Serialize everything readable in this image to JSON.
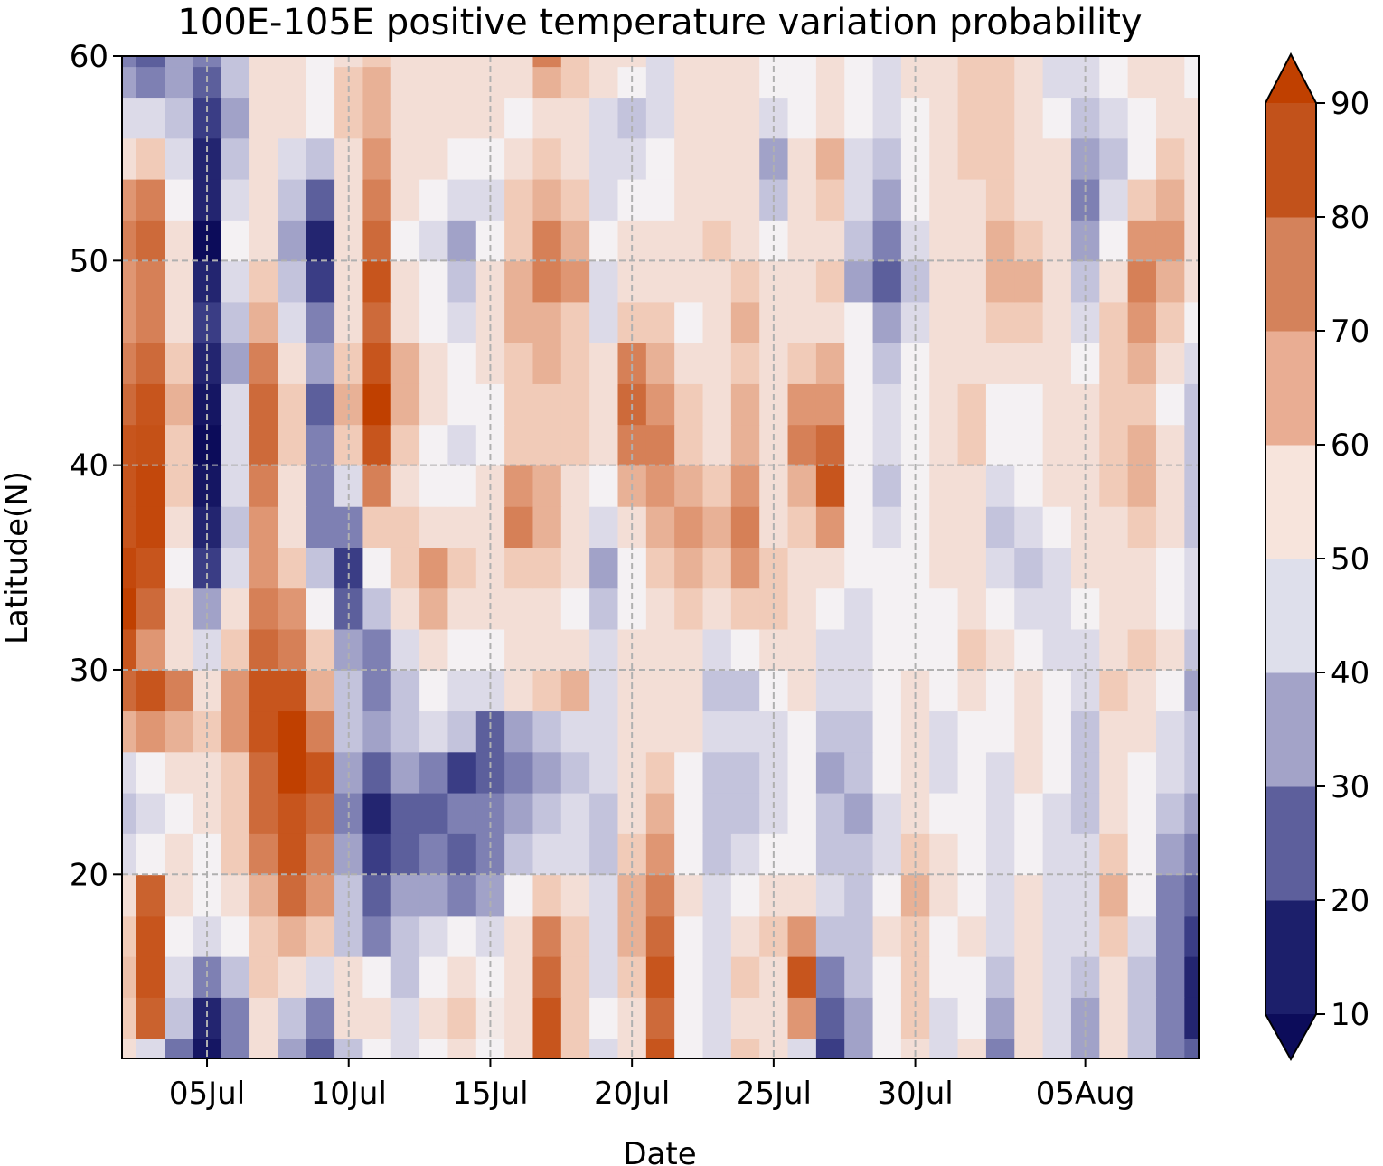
{
  "chart_data": {
    "type": "heatmap",
    "title": "100E-105E positive temperature variation probability",
    "xlabel": "Date",
    "ylabel": "Latitude(N)",
    "x_dates": [
      "02Jul",
      "03Jul",
      "04Jul",
      "05Jul",
      "06Jul",
      "07Jul",
      "08Jul",
      "09Jul",
      "10Jul",
      "11Jul",
      "12Jul",
      "13Jul",
      "14Jul",
      "15Jul",
      "16Jul",
      "17Jul",
      "18Jul",
      "19Jul",
      "20Jul",
      "21Jul",
      "22Jul",
      "23Jul",
      "24Jul",
      "25Jul",
      "26Jul",
      "27Jul",
      "28Jul",
      "29Jul",
      "30Jul",
      "31Jul",
      "01Aug",
      "02Aug",
      "03Aug",
      "04Aug",
      "05Aug",
      "06Aug",
      "07Aug",
      "08Aug",
      "09Aug"
    ],
    "x_ticks": [
      {
        "label": "05Jul",
        "index": 3
      },
      {
        "label": "10Jul",
        "index": 8
      },
      {
        "label": "15Jul",
        "index": 13
      },
      {
        "label": "20Jul",
        "index": 18
      },
      {
        "label": "25Jul",
        "index": 23
      },
      {
        "label": "30Jul",
        "index": 28
      },
      {
        "label": "05Aug",
        "index": 34
      }
    ],
    "y_lat": [
      11,
      13,
      15,
      17,
      19,
      21,
      23,
      25,
      27,
      29,
      31,
      33,
      35,
      37,
      39,
      41,
      43,
      45,
      47,
      49,
      51,
      53,
      55,
      57,
      59,
      60
    ],
    "y_ticks": [
      20,
      30,
      40,
      50,
      60
    ],
    "ylim": [
      11,
      60
    ],
    "grid": true,
    "colorbar": {
      "levels": [
        10,
        20,
        30,
        40,
        50,
        60,
        70,
        80,
        90
      ],
      "tick_labels": [
        "10",
        "20",
        "30",
        "40",
        "50",
        "60",
        "70",
        "80",
        "90"
      ],
      "colors": [
        "#1c1f6b",
        "#5d5f9c",
        "#a3a3c8",
        "#dedfeb",
        "#f7e4dc",
        "#e9ad93",
        "#d4825b",
        "#c2521b"
      ],
      "under_color": "#0c0c5a",
      "over_color": "#c04000",
      "extend": "both"
    },
    "colormap_stops": [
      [
        10,
        "#0c0c5a"
      ],
      [
        20,
        "#3a3d85"
      ],
      [
        30,
        "#7e80b3"
      ],
      [
        40,
        "#c3c3dc"
      ],
      [
        50,
        "#f4f1f3"
      ],
      [
        60,
        "#f1cbb8"
      ],
      [
        70,
        "#df9673"
      ],
      [
        80,
        "#cd6a3a"
      ],
      [
        90,
        "#c04000"
      ]
    ],
    "values": [
      [
        55,
        45,
        28,
        12,
        30,
        55,
        35,
        25,
        40,
        50,
        45,
        50,
        55,
        50,
        55,
        85,
        60,
        45,
        55,
        85,
        50,
        45,
        60,
        55,
        45,
        20,
        35,
        50,
        55,
        45,
        55,
        30,
        55,
        45,
        35,
        55,
        40,
        30,
        25
      ],
      [
        60,
        82,
        40,
        15,
        30,
        55,
        40,
        30,
        55,
        55,
        45,
        55,
        60,
        52,
        55,
        85,
        60,
        50,
        55,
        80,
        50,
        45,
        55,
        55,
        70,
        25,
        35,
        50,
        60,
        45,
        50,
        35,
        55,
        45,
        35,
        55,
        40,
        30,
        15
      ],
      [
        62,
        85,
        45,
        30,
        40,
        60,
        55,
        45,
        55,
        50,
        40,
        50,
        55,
        50,
        55,
        80,
        60,
        45,
        60,
        85,
        50,
        45,
        60,
        55,
        85,
        30,
        40,
        50,
        60,
        50,
        50,
        40,
        55,
        45,
        40,
        55,
        40,
        30,
        15
      ],
      [
        60,
        85,
        50,
        45,
        50,
        60,
        65,
        60,
        40,
        30,
        40,
        45,
        50,
        45,
        55,
        75,
        60,
        45,
        65,
        80,
        50,
        45,
        55,
        60,
        70,
        40,
        40,
        55,
        60,
        50,
        55,
        45,
        55,
        45,
        45,
        60,
        45,
        30,
        20
      ],
      [
        55,
        82,
        55,
        50,
        55,
        65,
        80,
        70,
        40,
        25,
        35,
        35,
        30,
        35,
        50,
        60,
        55,
        45,
        65,
        75,
        55,
        45,
        50,
        55,
        55,
        45,
        40,
        50,
        65,
        55,
        50,
        45,
        55,
        45,
        45,
        65,
        50,
        30,
        25
      ],
      [
        45,
        50,
        55,
        50,
        60,
        75,
        85,
        75,
        35,
        20,
        25,
        30,
        25,
        30,
        40,
        45,
        45,
        40,
        60,
        70,
        50,
        40,
        45,
        50,
        50,
        40,
        40,
        45,
        60,
        55,
        50,
        45,
        50,
        45,
        45,
        60,
        50,
        35,
        30
      ],
      [
        40,
        45,
        50,
        55,
        60,
        80,
        85,
        80,
        30,
        15,
        25,
        25,
        30,
        30,
        35,
        40,
        45,
        40,
        55,
        65,
        50,
        40,
        40,
        45,
        50,
        40,
        35,
        45,
        55,
        50,
        50,
        45,
        50,
        45,
        40,
        55,
        50,
        40,
        35
      ],
      [
        45,
        50,
        55,
        55,
        60,
        80,
        90,
        85,
        35,
        25,
        35,
        30,
        20,
        25,
        30,
        35,
        40,
        45,
        55,
        60,
        50,
        40,
        40,
        45,
        50,
        35,
        40,
        50,
        55,
        45,
        50,
        45,
        55,
        50,
        40,
        55,
        50,
        45,
        40
      ],
      [
        65,
        70,
        65,
        60,
        70,
        85,
        90,
        75,
        40,
        35,
        40,
        45,
        40,
        25,
        35,
        40,
        45,
        45,
        55,
        55,
        55,
        45,
        45,
        45,
        50,
        40,
        40,
        50,
        55,
        45,
        50,
        50,
        55,
        50,
        40,
        55,
        55,
        45,
        40
      ],
      [
        80,
        85,
        75,
        55,
        70,
        85,
        85,
        65,
        40,
        30,
        40,
        50,
        45,
        45,
        55,
        60,
        65,
        45,
        55,
        55,
        55,
        40,
        40,
        50,
        55,
        45,
        45,
        50,
        55,
        50,
        55,
        50,
        55,
        50,
        45,
        60,
        55,
        50,
        35
      ],
      [
        85,
        70,
        55,
        45,
        60,
        80,
        75,
        60,
        35,
        30,
        45,
        55,
        50,
        50,
        55,
        55,
        55,
        45,
        55,
        55,
        55,
        45,
        50,
        55,
        55,
        45,
        45,
        50,
        50,
        50,
        60,
        55,
        50,
        45,
        45,
        55,
        60,
        55,
        40
      ],
      [
        90,
        80,
        55,
        35,
        55,
        75,
        70,
        50,
        25,
        40,
        55,
        65,
        55,
        55,
        55,
        55,
        50,
        40,
        50,
        55,
        60,
        55,
        60,
        60,
        55,
        50,
        45,
        50,
        50,
        50,
        55,
        50,
        45,
        45,
        50,
        55,
        55,
        50,
        45
      ],
      [
        88,
        85,
        50,
        20,
        45,
        70,
        60,
        40,
        20,
        50,
        60,
        70,
        60,
        55,
        60,
        60,
        55,
        35,
        50,
        60,
        65,
        60,
        70,
        60,
        55,
        55,
        50,
        50,
        50,
        55,
        55,
        45,
        40,
        45,
        55,
        55,
        55,
        50,
        45
      ],
      [
        85,
        88,
        55,
        15,
        40,
        70,
        55,
        30,
        30,
        60,
        60,
        55,
        55,
        55,
        75,
        65,
        55,
        45,
        55,
        65,
        70,
        65,
        75,
        55,
        60,
        70,
        50,
        45,
        50,
        55,
        55,
        40,
        45,
        50,
        55,
        55,
        60,
        55,
        40
      ],
      [
        85,
        88,
        60,
        12,
        45,
        75,
        55,
        30,
        45,
        75,
        55,
        50,
        50,
        55,
        70,
        65,
        55,
        50,
        65,
        70,
        65,
        60,
        70,
        55,
        65,
        85,
        50,
        40,
        50,
        55,
        55,
        45,
        50,
        55,
        55,
        60,
        65,
        55,
        40
      ],
      [
        85,
        86,
        60,
        10,
        45,
        80,
        60,
        30,
        60,
        85,
        60,
        50,
        45,
        50,
        60,
        60,
        60,
        55,
        75,
        75,
        60,
        55,
        65,
        55,
        75,
        80,
        50,
        45,
        50,
        55,
        60,
        50,
        50,
        55,
        55,
        60,
        65,
        55,
        40
      ],
      [
        80,
        85,
        65,
        12,
        45,
        80,
        60,
        25,
        65,
        90,
        65,
        55,
        50,
        50,
        60,
        60,
        60,
        55,
        80,
        70,
        60,
        55,
        65,
        55,
        70,
        70,
        50,
        45,
        50,
        55,
        60,
        50,
        50,
        55,
        55,
        60,
        60,
        50,
        40
      ],
      [
        75,
        80,
        60,
        15,
        35,
        75,
        55,
        35,
        60,
        85,
        65,
        55,
        50,
        55,
        60,
        65,
        60,
        55,
        75,
        65,
        55,
        55,
        60,
        55,
        60,
        65,
        50,
        40,
        50,
        55,
        55,
        55,
        55,
        55,
        50,
        60,
        65,
        55,
        45
      ],
      [
        70,
        75,
        55,
        20,
        40,
        65,
        45,
        30,
        55,
        80,
        55,
        50,
        45,
        55,
        65,
        65,
        60,
        45,
        60,
        60,
        50,
        55,
        65,
        55,
        55,
        55,
        50,
        35,
        45,
        55,
        55,
        60,
        60,
        55,
        45,
        60,
        70,
        60,
        50
      ],
      [
        70,
        75,
        55,
        15,
        45,
        60,
        40,
        20,
        55,
        85,
        55,
        50,
        40,
        55,
        65,
        75,
        70,
        45,
        55,
        55,
        55,
        55,
        60,
        55,
        55,
        60,
        35,
        25,
        40,
        55,
        55,
        65,
        65,
        55,
        40,
        55,
        75,
        65,
        55
      ],
      [
        75,
        80,
        55,
        10,
        50,
        55,
        35,
        15,
        55,
        80,
        50,
        45,
        35,
        50,
        60,
        75,
        65,
        50,
        55,
        55,
        55,
        60,
        55,
        50,
        55,
        55,
        40,
        30,
        45,
        55,
        55,
        65,
        60,
        55,
        35,
        50,
        70,
        70,
        55
      ],
      [
        70,
        75,
        50,
        15,
        45,
        55,
        40,
        25,
        55,
        75,
        55,
        50,
        45,
        45,
        60,
        65,
        60,
        45,
        50,
        50,
        55,
        55,
        55,
        40,
        55,
        60,
        45,
        35,
        50,
        55,
        55,
        60,
        55,
        55,
        30,
        45,
        60,
        65,
        55
      ],
      [
        55,
        60,
        45,
        15,
        40,
        55,
        45,
        40,
        55,
        70,
        55,
        55,
        50,
        50,
        55,
        60,
        55,
        45,
        45,
        50,
        55,
        55,
        55,
        35,
        55,
        65,
        45,
        40,
        50,
        55,
        60,
        60,
        55,
        55,
        35,
        40,
        50,
        60,
        55
      ],
      [
        45,
        45,
        40,
        20,
        35,
        55,
        55,
        50,
        60,
        65,
        55,
        55,
        55,
        55,
        50,
        55,
        55,
        45,
        40,
        45,
        55,
        55,
        55,
        45,
        50,
        55,
        50,
        45,
        50,
        55,
        60,
        60,
        55,
        50,
        40,
        45,
        50,
        55,
        55
      ],
      [
        35,
        30,
        35,
        25,
        40,
        55,
        55,
        50,
        60,
        65,
        55,
        55,
        55,
        55,
        55,
        65,
        60,
        55,
        50,
        45,
        55,
        55,
        55,
        50,
        50,
        55,
        50,
        45,
        55,
        55,
        60,
        60,
        55,
        45,
        45,
        50,
        55,
        55,
        50
      ],
      [
        30,
        25,
        35,
        30,
        40,
        55,
        55,
        50,
        55,
        60,
        55,
        55,
        55,
        55,
        55,
        75,
        60,
        55,
        55,
        45,
        55,
        55,
        55,
        50,
        50,
        55,
        50,
        45,
        55,
        55,
        60,
        60,
        55,
        45,
        45,
        50,
        55,
        55,
        50
      ]
    ]
  }
}
